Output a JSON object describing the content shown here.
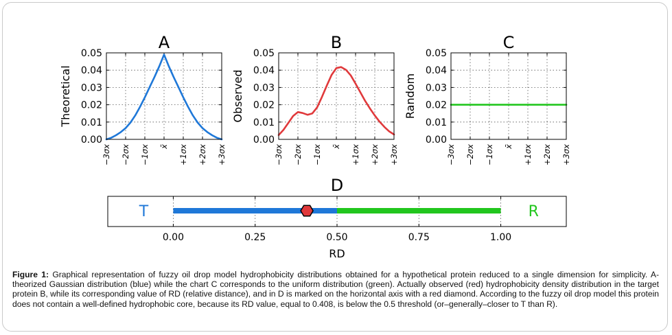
{
  "chart_data": [
    {
      "panel": "A",
      "type": "line",
      "title": "A",
      "ylabel": "Theoretical",
      "x_ticklabels": [
        "−3σx",
        "−2σx",
        "−1σx",
        "x̄",
        "+1σx",
        "+2σx",
        "+3σx"
      ],
      "x": [
        -3,
        -2.75,
        -2.5,
        -2.25,
        -2,
        -1.75,
        -1.5,
        -1.25,
        -1,
        -0.75,
        -0.5,
        -0.25,
        0,
        0.25,
        0.5,
        0.75,
        1,
        1.25,
        1.5,
        1.75,
        2,
        2.25,
        2.5,
        2.75,
        3
      ],
      "series": [
        {
          "name": "Theoretical",
          "color": "#1f78d8",
          "values": [
            0,
            0.0009,
            0.0024,
            0.0042,
            0.0065,
            0.0097,
            0.0138,
            0.0188,
            0.0243,
            0.0302,
            0.036,
            0.0422,
            0.049,
            0.0422,
            0.036,
            0.0302,
            0.0243,
            0.0188,
            0.0138,
            0.0097,
            0.0065,
            0.0042,
            0.0024,
            0.0009,
            0
          ]
        }
      ],
      "yticks": [
        "0.00",
        "0.01",
        "0.02",
        "0.03",
        "0.04",
        "0.05"
      ],
      "ylim": [
        0,
        0.05
      ],
      "xlim": [
        -3,
        3
      ],
      "grid": true
    },
    {
      "panel": "B",
      "type": "line",
      "title": "B",
      "ylabel": "Observed",
      "x_ticklabels": [
        "−3σx",
        "−2σx",
        "−1σx",
        "x̄",
        "+1σx",
        "+2σx",
        "+3σx"
      ],
      "x": [
        -3,
        -2.75,
        -2.5,
        -2.25,
        -2,
        -1.75,
        -1.5,
        -1.25,
        -1,
        -0.75,
        -0.5,
        -0.25,
        0,
        0.25,
        0.5,
        0.75,
        1,
        1.25,
        1.5,
        1.75,
        2,
        2.25,
        2.5,
        2.75,
        3
      ],
      "series": [
        {
          "name": "Observed",
          "color": "#e0393b",
          "values": [
            0.0025,
            0.0055,
            0.0095,
            0.0135,
            0.0158,
            0.0152,
            0.0142,
            0.015,
            0.0185,
            0.0245,
            0.031,
            0.0372,
            0.0412,
            0.0418,
            0.0402,
            0.037,
            0.0322,
            0.0272,
            0.0222,
            0.0178,
            0.0138,
            0.0102,
            0.0072,
            0.0046,
            0.0028
          ]
        }
      ],
      "yticks": [
        "0.00",
        "0.01",
        "0.02",
        "0.03",
        "0.04",
        "0.05"
      ],
      "ylim": [
        0,
        0.05
      ],
      "xlim": [
        -3,
        3
      ],
      "grid": true
    },
    {
      "panel": "C",
      "type": "line",
      "title": "C",
      "ylabel": "Random",
      "x_ticklabels": [
        "−3σx",
        "−2σx",
        "−1σx",
        "x̄",
        "+1σx",
        "+2σx",
        "+3σx"
      ],
      "x": [
        -3,
        3
      ],
      "series": [
        {
          "name": "Random",
          "color": "#22c61e",
          "values": [
            0.02,
            0.02
          ]
        }
      ],
      "yticks": [
        "0.00",
        "0.01",
        "0.02",
        "0.03",
        "0.04",
        "0.05"
      ],
      "ylim": [
        0,
        0.05
      ],
      "xlim": [
        -3,
        3
      ],
      "grid": true
    },
    {
      "panel": "D",
      "type": "bar",
      "title": "D",
      "xlabel": "RD",
      "xticks": [
        0,
        0.25,
        0.5,
        0.75,
        1.0
      ],
      "x_ticklabels": [
        "0.00",
        "0.25",
        "0.50",
        "0.75",
        "1.00"
      ],
      "xlim": [
        -0.2,
        1.2
      ],
      "segments": [
        {
          "from": 0.0,
          "to": 0.5,
          "color": "#1f78d8"
        },
        {
          "from": 0.5,
          "to": 1.0,
          "color": "#22c61e"
        }
      ],
      "marker": {
        "value": 0.408,
        "color": "#e0393b"
      },
      "end_labels": [
        {
          "text": "T",
          "value": -0.09,
          "color": "#1f78d8"
        },
        {
          "text": "R",
          "value": 1.1,
          "color": "#22c61e"
        }
      ],
      "grid": true
    }
  ],
  "caption": {
    "label": "Figure 1:",
    "text": " Graphical representation of fuzzy oil drop model hydrophobicity distributions obtained for a hypothetical protein reduced to a single dimension for simplicity. A-theorized Gaussian distribution (blue) while the chart C corresponds to the uniform distribution (green). Actually observed (red) hydrophobicity density distribution in the target protein B, while its corresponding value of RD (relative distance), and in D is marked on the horizontal axis with a red diamond. According to the fuzzy oil drop model this protein does not contain a well-defined hydrophobic core, because its RD value, equal to 0.408, is below the 0.5 threshold (or–generally–closer to T than R)."
  }
}
